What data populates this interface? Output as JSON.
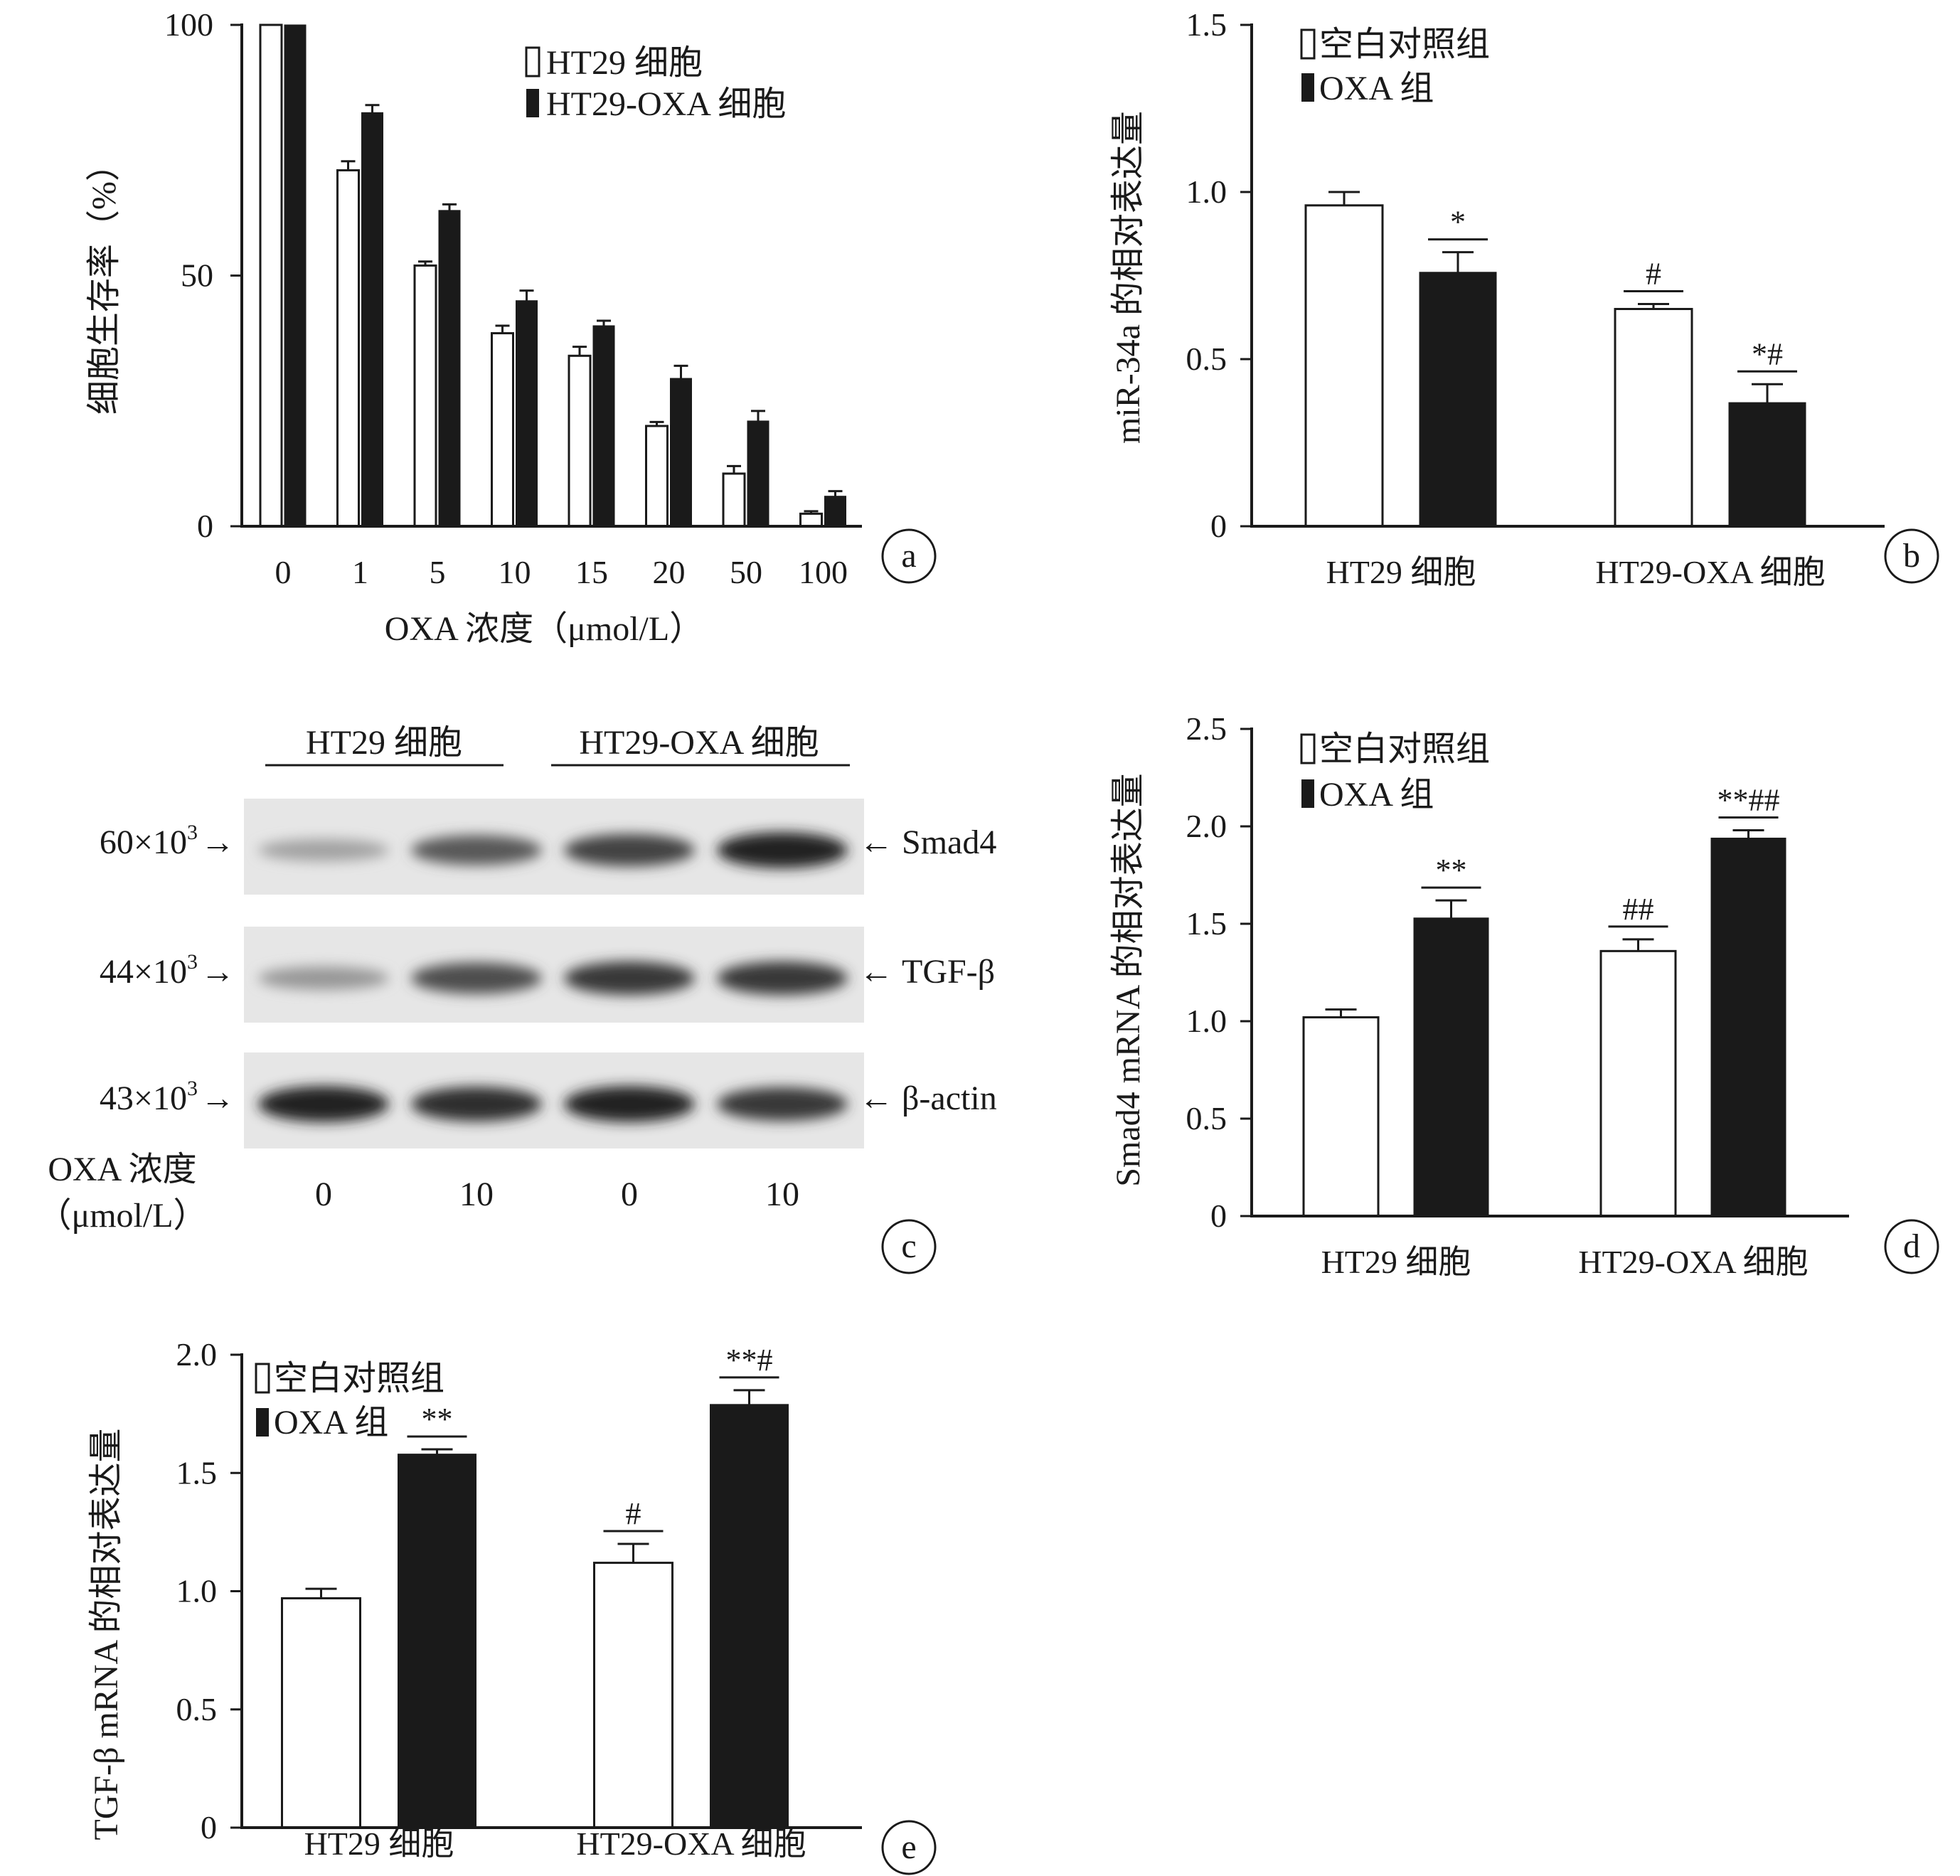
{
  "chart_data": [
    {
      "panel": "a",
      "type": "bar",
      "categories": [
        "0",
        "1",
        "5",
        "10",
        "15",
        "20",
        "50",
        "100"
      ],
      "series": [
        {
          "name": "HT29 细胞",
          "values": [
            100,
            71,
            52,
            38.5,
            34,
            20,
            10.5,
            2.5
          ],
          "errors": [
            0,
            1.8,
            0.8,
            1.5,
            1.8,
            0.8,
            1.5,
            0.5
          ]
        },
        {
          "name": "HT29-OXA 细胞",
          "values": [
            100,
            82.5,
            63,
            45,
            40,
            29.5,
            21,
            6
          ],
          "errors": [
            0,
            1.5,
            1.2,
            2,
            1,
            2.5,
            2,
            1
          ]
        }
      ],
      "xlabel": "OXA 浓度（μmol/L）",
      "ylabel": "细胞生存率（%）",
      "ylim": [
        0,
        100
      ],
      "yticks": [
        "0",
        "50",
        "100"
      ],
      "legend_position": "top-right"
    },
    {
      "panel": "b",
      "type": "bar",
      "categories": [
        "HT29 细胞",
        "HT29-OXA 细胞"
      ],
      "series": [
        {
          "name": "空白对照组",
          "values": [
            0.96,
            0.65
          ],
          "errors": [
            0.04,
            0.015
          ],
          "marks": [
            "",
            "#"
          ]
        },
        {
          "name": "OXA 组",
          "values": [
            0.76,
            0.37
          ],
          "errors": [
            0.06,
            0.055
          ],
          "marks": [
            "*",
            "*#"
          ]
        }
      ],
      "ylabel": "miR-34a 的相对表达量",
      "ylim": [
        0,
        1.5
      ],
      "yticks": [
        "0",
        "0.5",
        "1.0",
        "1.5"
      ],
      "legend_position": "top-left"
    },
    {
      "panel": "d",
      "type": "bar",
      "categories": [
        "HT29 细胞",
        "HT29-OXA 细胞"
      ],
      "series": [
        {
          "name": "空白对照组",
          "values": [
            1.02,
            1.36
          ],
          "errors": [
            0.04,
            0.06
          ],
          "marks": [
            "",
            "##"
          ]
        },
        {
          "name": "OXA 组",
          "values": [
            1.53,
            1.94
          ],
          "errors": [
            0.09,
            0.04
          ],
          "marks": [
            "**",
            "**##"
          ]
        }
      ],
      "ylabel": "Smad4 mRNA 的相对表达量",
      "ylim": [
        0,
        2.5
      ],
      "yticks": [
        "0",
        "0.5",
        "1.0",
        "1.5",
        "2.0",
        "2.5"
      ],
      "legend_position": "top-left"
    },
    {
      "panel": "e",
      "type": "bar",
      "categories": [
        "HT29 细胞",
        "HT29-OXA 细胞"
      ],
      "series": [
        {
          "name": "空白对照组",
          "values": [
            0.97,
            1.12
          ],
          "errors": [
            0.04,
            0.08
          ],
          "marks": [
            "",
            "#"
          ]
        },
        {
          "name": "OXA 组",
          "values": [
            1.58,
            1.79
          ],
          "errors": [
            0.02,
            0.06
          ],
          "marks": [
            "**",
            "**#"
          ]
        }
      ],
      "ylabel": "TGF-β mRNA 的相对表达量",
      "ylim": [
        0,
        2.0
      ],
      "yticks": [
        "0",
        "0.5",
        "1.0",
        "1.5",
        "2.0"
      ],
      "legend_position": "top-left"
    }
  ],
  "western_blot": {
    "panel": "c",
    "groups": [
      "HT29  细胞",
      "HT29-OXA  细胞"
    ],
    "rows": [
      {
        "mw": "60×10",
        "mw_sup": "3",
        "protein": "Smad4",
        "intensities": [
          0.35,
          0.7,
          0.8,
          0.95
        ]
      },
      {
        "mw": "44×10",
        "mw_sup": "3",
        "protein": "TGF-β",
        "intensities": [
          0.4,
          0.75,
          0.85,
          0.85
        ]
      },
      {
        "mw": "43×10",
        "mw_sup": "3",
        "protein": "β-actin",
        "intensities": [
          0.95,
          0.9,
          0.95,
          0.85
        ]
      }
    ],
    "conc_label_line1": "OXA 浓度",
    "conc_label_line2": "（μmol/L）",
    "concentrations": [
      "0",
      "10",
      "0",
      "10"
    ]
  },
  "panel_letters": [
    "a",
    "b",
    "c",
    "d",
    "e"
  ],
  "colors": {
    "filled": "#1a1a1a",
    "open": "#ffffff",
    "axis": "#1a1a1a"
  }
}
